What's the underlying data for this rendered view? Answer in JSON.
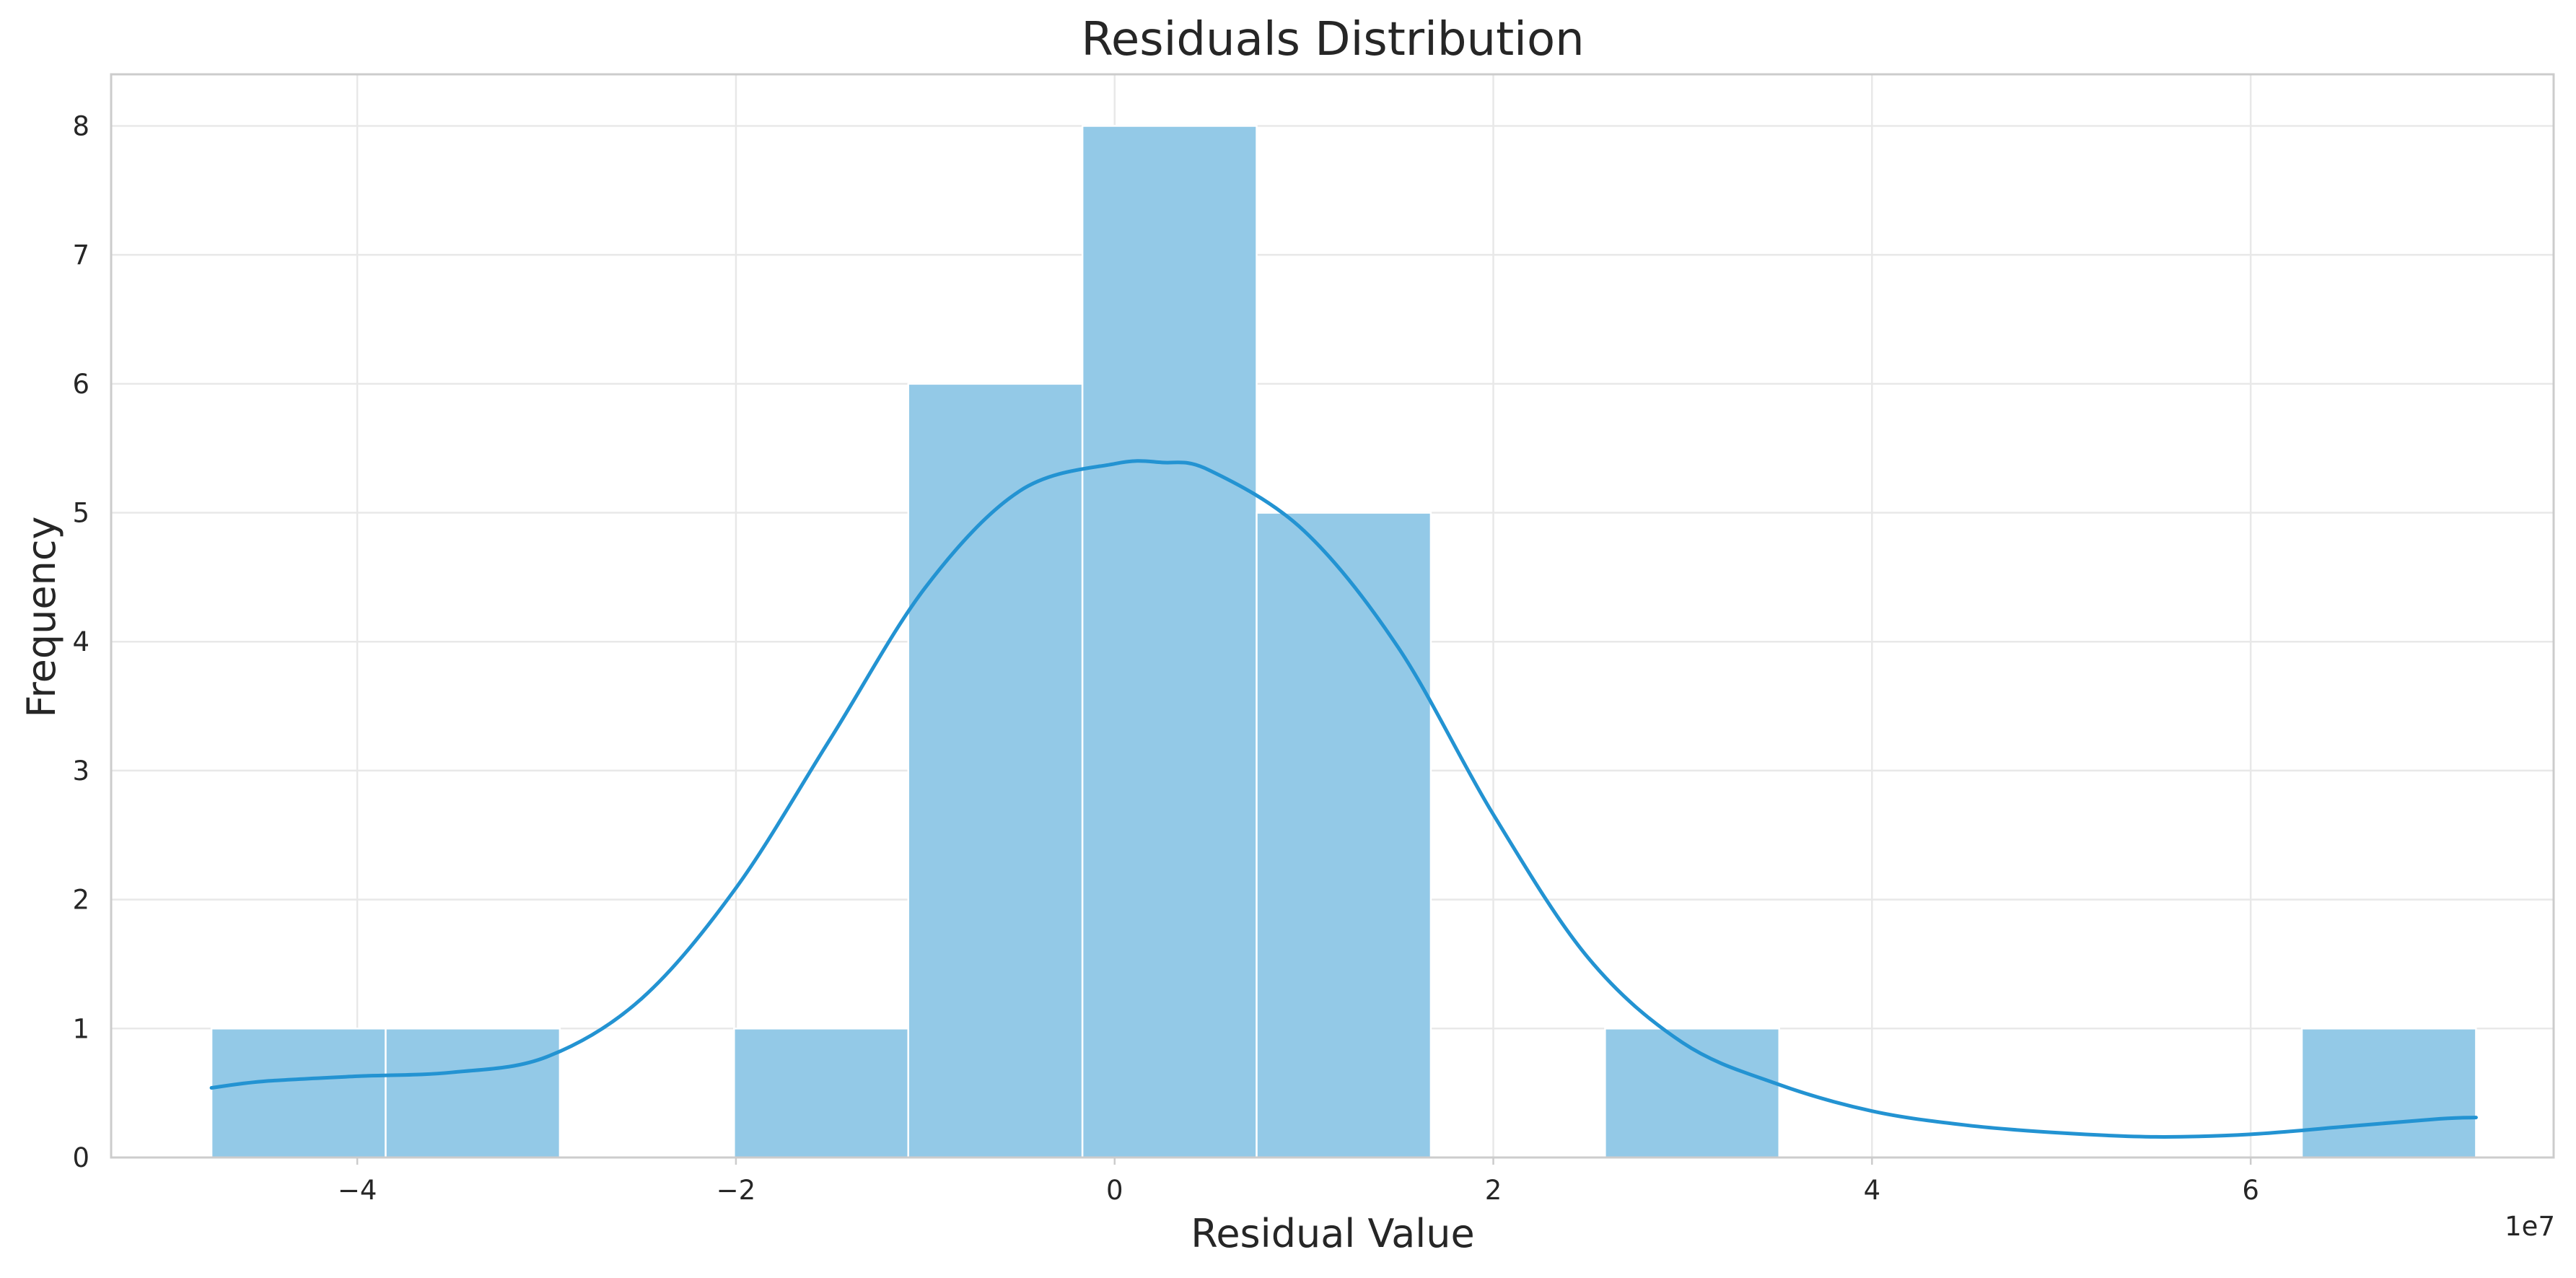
{
  "chart_data": {
    "type": "bar",
    "title": "Residuals Distribution",
    "xlabel": "Residual Value",
    "ylabel": "Frequency",
    "x_offset_label": "1e7",
    "xlim": [
      -5.3,
      7.6
    ],
    "ylim": [
      0,
      8.4
    ],
    "x_ticks": [
      -4,
      -2,
      0,
      2,
      4,
      6
    ],
    "x_tick_labels": [
      "−4",
      "−2",
      "0",
      "2",
      "4",
      "6"
    ],
    "y_ticks": [
      0,
      1,
      2,
      3,
      4,
      5,
      6,
      7,
      8
    ],
    "y_tick_labels": [
      "0",
      "1",
      "2",
      "3",
      "4",
      "5",
      "6",
      "7",
      "8"
    ],
    "grid": true,
    "bin_edges": [
      -4.77,
      -3.85,
      -2.93,
      -2.01,
      -1.09,
      -0.17,
      0.75,
      1.67,
      2.59,
      3.51,
      4.43,
      5.35,
      6.27,
      7.19
    ],
    "counts": [
      1,
      1,
      0,
      1,
      6,
      8,
      5,
      0,
      1,
      0,
      0,
      0,
      1
    ],
    "kde": {
      "x": [
        -4.77,
        -4.5,
        -4.0,
        -3.5,
        -3.0,
        -2.5,
        -2.0,
        -1.5,
        -1.0,
        -0.5,
        0.0,
        0.25,
        0.5,
        1.0,
        1.5,
        2.0,
        2.5,
        3.0,
        3.5,
        4.0,
        4.5,
        5.0,
        5.5,
        6.0,
        6.5,
        7.0,
        7.19
      ],
      "y": [
        0.54,
        0.59,
        0.63,
        0.66,
        0.78,
        1.23,
        2.09,
        3.25,
        4.42,
        5.17,
        5.38,
        5.39,
        5.33,
        4.86,
        3.95,
        2.66,
        1.55,
        0.89,
        0.57,
        0.36,
        0.25,
        0.19,
        0.16,
        0.18,
        0.24,
        0.3,
        0.31
      ]
    },
    "colors": {
      "bar": "#93c9e7",
      "kde": "#2393d2"
    }
  }
}
